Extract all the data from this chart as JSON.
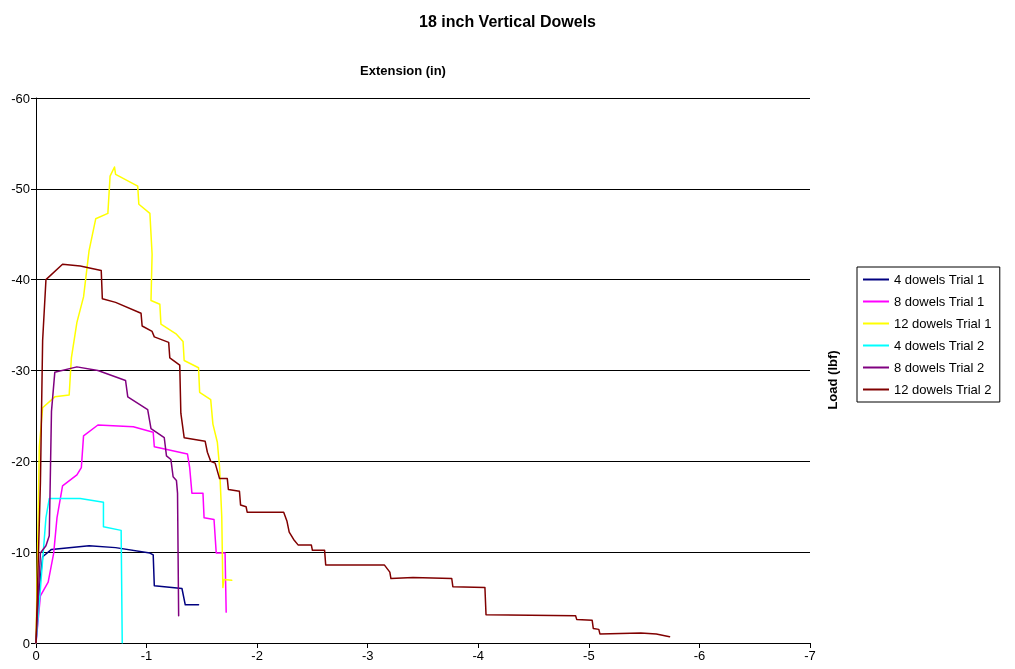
{
  "chart_data": {
    "type": "line",
    "title": "18 inch Vertical Dowels",
    "xlabel": "Extension (in)",
    "ylabel": "Load (lbf)",
    "xlim": [
      0,
      -7
    ],
    "xticks": [
      0,
      -1,
      -2,
      -3,
      -4,
      -5,
      -6,
      -7
    ],
    "ylim": [
      0,
      -60
    ],
    "yticks": [
      0,
      -10,
      -20,
      -30,
      -40,
      -50,
      -60
    ],
    "grid": "y",
    "legend": "right",
    "marker": "none",
    "line_style": "solid",
    "series": [
      {
        "name": "4 dowels Trial 1",
        "color": "#000080",
        "x": [
          0,
          -0.03,
          -0.06,
          -0.14,
          -0.48,
          -0.72,
          -1.03,
          -1.06,
          -1.07,
          -1.32,
          -1.35,
          -1.47
        ],
        "values": [
          0,
          -6,
          -9.5,
          -10.3,
          -10.7,
          -10.5,
          -9.9,
          -9.7,
          -6.3,
          -6,
          -4.2,
          -4.2
        ]
      },
      {
        "name": "8 dowels Trial 1",
        "color": "#ff00ff",
        "x": [
          0,
          -0.04,
          -0.11,
          -0.16,
          -0.19,
          -0.24,
          -0.37,
          -0.41,
          -0.43,
          -0.56,
          -0.88,
          -1.06,
          -1.07,
          -1.37,
          -1.39,
          -1.41,
          -1.51,
          -1.52,
          -1.61,
          -1.63,
          -1.71,
          -1.72
        ],
        "values": [
          0,
          -5.2,
          -6.7,
          -9.9,
          -13.8,
          -17.3,
          -18.5,
          -19.3,
          -22.8,
          -24,
          -23.8,
          -23.2,
          -21.6,
          -20.8,
          -19.3,
          -16.5,
          -16.5,
          -13.8,
          -13.6,
          -9.9,
          -9.9,
          -3.4
        ]
      },
      {
        "name": "12 dowels Trial 1",
        "color": "#ffff00",
        "x": [
          0,
          -0.03,
          -0.06,
          -0.17,
          -0.3,
          -0.32,
          -0.37,
          -0.43,
          -0.48,
          -0.54,
          -0.65,
          -0.67,
          -0.71,
          -0.72,
          -0.92,
          -0.93,
          -1.03,
          -1.05,
          -1.04,
          -1.12,
          -1.13,
          -1.27,
          -1.33,
          -1.34,
          -1.47,
          -1.48,
          -1.58,
          -1.6,
          -1.64,
          -1.66,
          -1.68,
          -1.69,
          -1.7,
          -1.77
        ],
        "values": [
          0,
          -21.6,
          -25.9,
          -27.1,
          -27.3,
          -31.4,
          -35.3,
          -38.1,
          -43.2,
          -46.7,
          -47.3,
          -51.4,
          -52.4,
          -51.6,
          -50.3,
          -48.3,
          -47.3,
          -42.8,
          -37.7,
          -37.3,
          -35.1,
          -34,
          -33.2,
          -31.1,
          -30.3,
          -27.6,
          -26.8,
          -24.1,
          -22.1,
          -19.4,
          -13.9,
          -6.1,
          -7,
          -6.9
        ]
      },
      {
        "name": "4 dowels Trial 2",
        "color": "#00ffff",
        "x": [
          0,
          -0.04,
          -0.09,
          -0.12,
          -0.4,
          -0.61,
          -0.61,
          -0.77,
          -0.78
        ],
        "values": [
          0,
          -6,
          -13.8,
          -15.9,
          -15.9,
          -15.5,
          -12.8,
          -12.4,
          0
        ]
      },
      {
        "name": "8 dowels Trial 2",
        "color": "#800080",
        "x": [
          0,
          -0.04,
          -0.09,
          -0.12,
          -0.14,
          -0.17,
          -0.37,
          -0.56,
          -0.81,
          -0.83,
          -1.01,
          -1.04,
          -1.16,
          -1.18,
          -1.22,
          -1.24,
          -1.27,
          -1.28,
          -1.29
        ],
        "values": [
          0,
          -9.9,
          -10.7,
          -11.8,
          -25.5,
          -29.8,
          -30.4,
          -30,
          -28.9,
          -27.1,
          -25.7,
          -23.6,
          -22.6,
          -20.6,
          -20.2,
          -18.3,
          -17.9,
          -16.5,
          -3
        ]
      },
      {
        "name": "12 dowels Trial 2",
        "color": "#800000",
        "x": [
          0,
          -0.04,
          -0.06,
          -0.09,
          -0.24,
          -0.4,
          -0.59,
          -0.6,
          -0.72,
          -0.95,
          -0.96,
          -1.05,
          -1.07,
          -1.2,
          -1.21,
          -1.3,
          -1.31,
          -1.34,
          -1.53,
          -1.55,
          -1.58,
          -1.62,
          -1.66,
          -1.73,
          -1.74,
          -1.84,
          -1.85,
          -1.9,
          -1.91,
          -2.24,
          -2.27,
          -2.29,
          -2.33,
          -2.37,
          -2.49,
          -2.5,
          -2.61,
          -2.62,
          -3.15,
          -3.2,
          -3.21,
          -3.41,
          -3.76,
          -3.77,
          -4.06,
          -4.07,
          -4.88,
          -4.89,
          -5.03,
          -5.04,
          -5.09,
          -5.1,
          -5.47,
          -5.61,
          -5.73
        ],
        "values": [
          0,
          -17.7,
          -33.3,
          -40,
          -41.7,
          -41.5,
          -41,
          -37.9,
          -37.5,
          -36.3,
          -34.9,
          -34.3,
          -33.7,
          -33.1,
          -31.4,
          -30.6,
          -25.3,
          -22.6,
          -22.2,
          -21,
          -20,
          -19.8,
          -18.1,
          -18.1,
          -16.9,
          -16.7,
          -15.2,
          -15,
          -14.4,
          -14.4,
          -13.4,
          -12.2,
          -11.4,
          -10.8,
          -10.8,
          -10.2,
          -10.2,
          -8.6,
          -8.6,
          -7.8,
          -7.1,
          -7.2,
          -7.1,
          -6.2,
          -6.1,
          -3.1,
          -3,
          -2.6,
          -2.5,
          -1.6,
          -1.5,
          -1,
          -1.1,
          -1,
          -0.7
        ]
      }
    ]
  }
}
